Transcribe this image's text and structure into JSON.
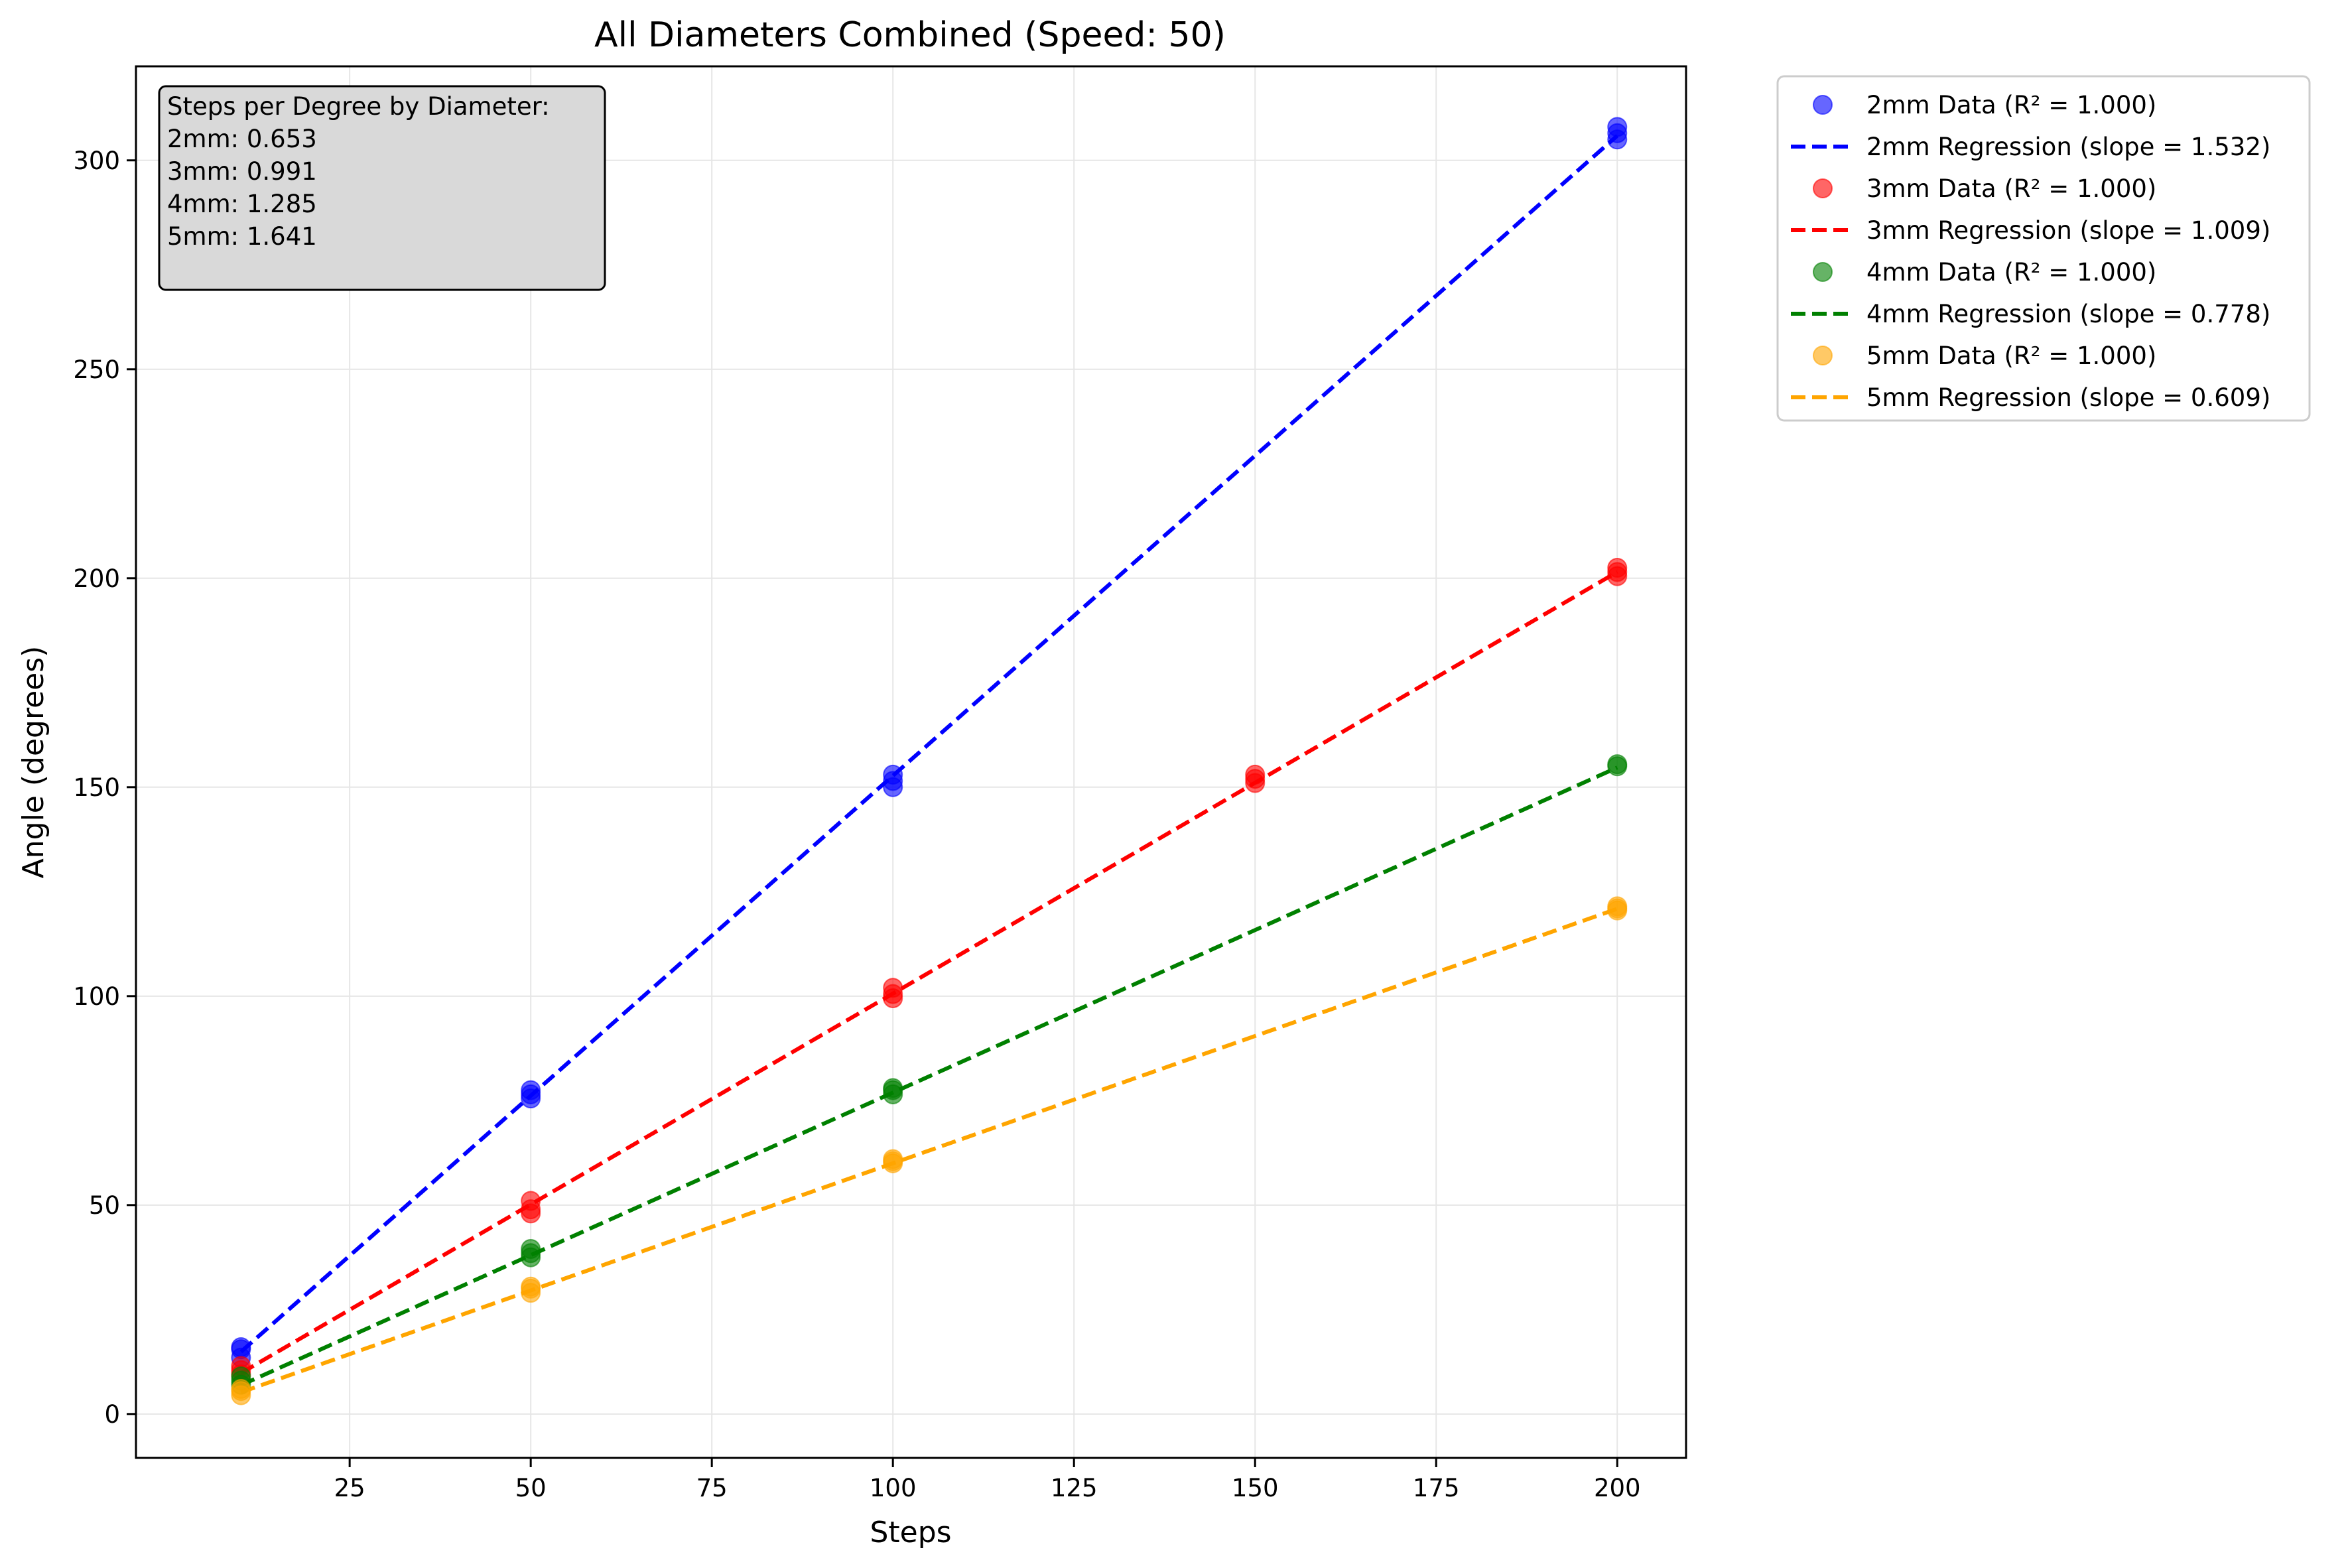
{
  "chart_data": {
    "type": "scatter",
    "title": "All Diameters Combined (Speed: 50)",
    "xlabel": "Steps",
    "ylabel": "Angle (degrees)",
    "xlim": [
      -4.5,
      209.5
    ],
    "ylim": [
      -10.5,
      322.5
    ],
    "xticks": [
      25,
      50,
      75,
      100,
      125,
      150,
      175,
      200
    ],
    "yticks": [
      0,
      50,
      100,
      150,
      200,
      250,
      300
    ],
    "grid": true,
    "legend_placement": "outside-top-right",
    "annotation": {
      "heading": "Steps per Degree by Diameter:",
      "lines": [
        "2mm: 0.653",
        "3mm: 0.991",
        "4mm: 1.285",
        "5mm: 1.641"
      ]
    },
    "series": [
      {
        "name": "2mm Data (R² = 1.000)",
        "kind": "scatter",
        "color": "#0000ff",
        "points": [
          [
            10,
            13.5
          ],
          [
            10,
            15.5
          ],
          [
            10,
            16.0
          ],
          [
            50,
            75.5
          ],
          [
            50,
            76.5
          ],
          [
            50,
            77.5
          ],
          [
            100,
            150.0
          ],
          [
            100,
            151.5
          ],
          [
            100,
            153.0
          ],
          [
            200,
            305.0
          ],
          [
            200,
            306.5
          ],
          [
            200,
            308.0
          ]
        ]
      },
      {
        "name": "2mm Regression (slope = 1.532)",
        "kind": "line",
        "color": "#0000ff",
        "x": [
          10,
          200
        ],
        "y": [
          14.9,
          305.9
        ]
      },
      {
        "name": "3mm Data (R² = 1.000)",
        "kind": "scatter",
        "color": "#ff0000",
        "points": [
          [
            10,
            9.5
          ],
          [
            10,
            10.5
          ],
          [
            10,
            11.5
          ],
          [
            50,
            48.0
          ],
          [
            50,
            49.0
          ],
          [
            50,
            51.0
          ],
          [
            100,
            99.5
          ],
          [
            100,
            100.5
          ],
          [
            100,
            102.0
          ],
          [
            150,
            151.0
          ],
          [
            150,
            152.0
          ],
          [
            150,
            153.0
          ],
          [
            200,
            200.5
          ],
          [
            200,
            201.5
          ],
          [
            200,
            202.5
          ]
        ]
      },
      {
        "name": "3mm Regression (slope = 1.009)",
        "kind": "line",
        "color": "#ff0000",
        "x": [
          10,
          200
        ],
        "y": [
          9.8,
          201.5
        ]
      },
      {
        "name": "4mm Data (R² = 1.000)",
        "kind": "scatter",
        "color": "#008000",
        "points": [
          [
            10,
            7.0
          ],
          [
            10,
            8.0
          ],
          [
            10,
            9.0
          ],
          [
            50,
            37.5
          ],
          [
            50,
            38.5
          ],
          [
            50,
            39.5
          ],
          [
            100,
            76.5
          ],
          [
            100,
            77.5
          ],
          [
            100,
            78.0
          ],
          [
            200,
            155.0
          ],
          [
            200,
            155.5
          ]
        ]
      },
      {
        "name": "4mm Regression (slope = 0.778)",
        "kind": "line",
        "color": "#008000",
        "x": [
          10,
          200
        ],
        "y": [
          6.9,
          154.7
        ]
      },
      {
        "name": "5mm Data (R² = 1.000)",
        "kind": "scatter",
        "color": "#ffa500",
        "points": [
          [
            10,
            4.5
          ],
          [
            10,
            5.5
          ],
          [
            10,
            6.0
          ],
          [
            50,
            29.0
          ],
          [
            50,
            30.0
          ],
          [
            50,
            30.5
          ],
          [
            100,
            60.0
          ],
          [
            100,
            60.5
          ],
          [
            100,
            61.0
          ],
          [
            200,
            120.5
          ],
          [
            200,
            121.0
          ],
          [
            200,
            121.5
          ]
        ]
      },
      {
        "name": "5mm Regression (slope = 0.609)",
        "kind": "line",
        "color": "#ffa500",
        "x": [
          10,
          200
        ],
        "y": [
          5.2,
          120.9
        ]
      }
    ]
  }
}
